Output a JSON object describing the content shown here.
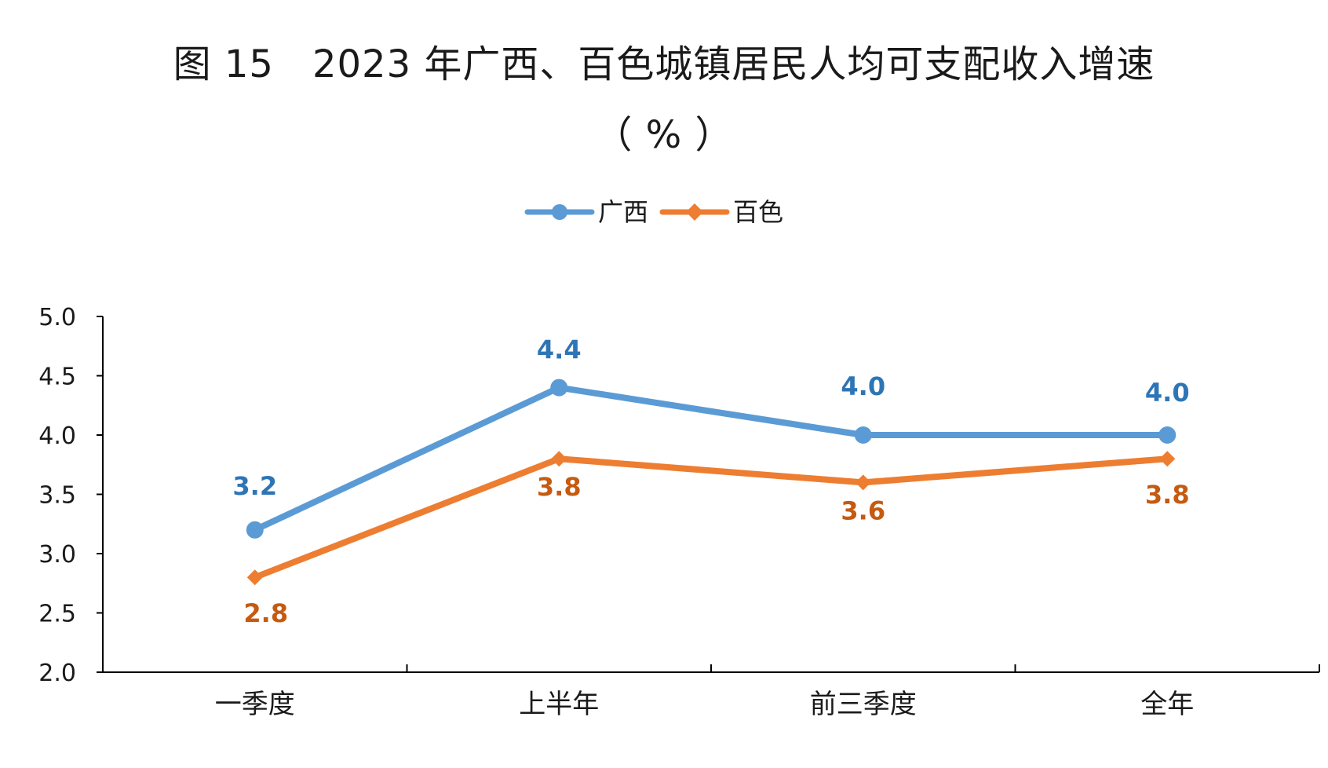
{
  "title_line1": "图 15　2023 年广西、百色城镇居民人均可支配收入增速",
  "title_line2": "（ % ）",
  "colors": {
    "guangxi_line": "#5b9bd5",
    "guangxi_label": "#2e75b6",
    "baise_line": "#ed7d31",
    "baise_label": "#c55a11",
    "axis": "#000000"
  },
  "chart_data": {
    "type": "line",
    "title": "图 15　2023 年广西、百色城镇居民人均可支配收入增速",
    "ylabel": "（ % ）",
    "xlabel": "",
    "categories": [
      "一季度",
      "上半年",
      "前三季度",
      "全年"
    ],
    "series": [
      {
        "name": "广西",
        "values": [
          3.2,
          4.4,
          4.0,
          4.0
        ],
        "marker": "circle",
        "labels": [
          "3.2",
          "4.4",
          "4.0",
          "4.0"
        ]
      },
      {
        "name": "百色",
        "values": [
          2.8,
          3.8,
          3.6,
          3.8
        ],
        "marker": "diamond",
        "labels": [
          "2.8",
          "3.8",
          "3.6",
          "3.8"
        ]
      }
    ],
    "ylim": [
      2.0,
      5.0
    ],
    "yticks": [
      "2.0",
      "2.5",
      "3.0",
      "3.5",
      "4.0",
      "4.5",
      "5.0"
    ],
    "grid": false,
    "legend_position": "top"
  }
}
